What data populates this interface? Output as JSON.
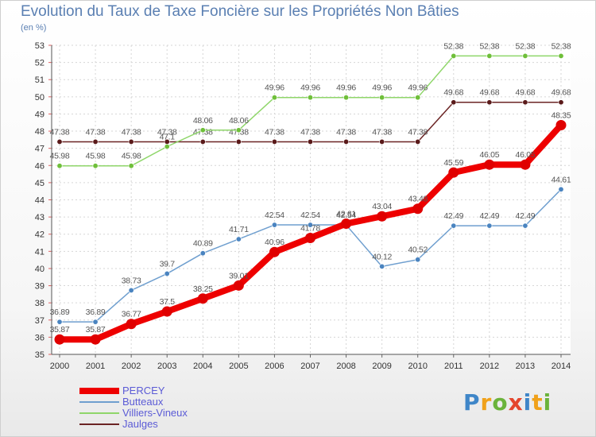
{
  "header": {
    "title": "Evolution du Taux de Taxe Foncière sur les Propriétés Non Bâties",
    "subtitle": "(en %)"
  },
  "logo": {
    "text": "Proxiti"
  },
  "chart_data": {
    "type": "line",
    "x": [
      "2000",
      "2001",
      "2002",
      "2003",
      "2004",
      "2005",
      "2006",
      "2007",
      "2008",
      "2009",
      "2010",
      "2011",
      "2012",
      "2013",
      "2014"
    ],
    "ylim": [
      35,
      53
    ],
    "yticks": [
      35,
      36,
      37,
      38,
      39,
      40,
      41,
      42,
      43,
      44,
      45,
      46,
      47,
      48,
      49,
      50,
      51,
      52,
      53
    ],
    "grid": true,
    "legend_position": "bottom-left",
    "series": [
      {
        "name": "Jaulges",
        "color": "#6b2424",
        "marker": "#5a1a1a",
        "width": 1.5,
        "values": [
          47.38,
          47.38,
          47.38,
          47.38,
          47.38,
          47.38,
          47.38,
          47.38,
          47.38,
          47.38,
          47.38,
          49.68,
          49.68,
          49.68,
          49.68
        ],
        "labels": [
          "47.38",
          "47.38",
          "47.38",
          "47.38",
          "47.38",
          "47.38",
          "47.38",
          "47.38",
          "47.38",
          "47.38",
          "47.38",
          "49.68",
          "49.68",
          "49.68",
          "49.68"
        ]
      },
      {
        "name": "Villiers-Vineux",
        "color": "#8fd66a",
        "marker": "#6fbf3a",
        "width": 1.5,
        "values": [
          45.98,
          45.98,
          45.98,
          47.1,
          48.06,
          48.06,
          49.96,
          49.96,
          49.96,
          49.96,
          49.96,
          52.38,
          52.38,
          52.38,
          52.38
        ],
        "labels": [
          "45.98",
          "45.98",
          "45.98",
          "47.1",
          "48.06",
          "48.06",
          "49.96",
          "49.96",
          "49.96",
          "49.96",
          "49.96",
          "52.38",
          "52.38",
          "52.38",
          "52.38"
        ]
      },
      {
        "name": "Butteaux",
        "color": "#6f9fcf",
        "marker": "#4a84c0",
        "width": 1.5,
        "values": [
          36.89,
          36.89,
          38.73,
          39.7,
          40.89,
          41.71,
          42.54,
          42.54,
          42.54,
          40.12,
          40.52,
          42.49,
          42.49,
          42.49,
          44.61
        ],
        "labels": [
          "36.89",
          "36.89",
          "38.73",
          "39.7",
          "40.89",
          "41.71",
          "42.54",
          "42.54",
          "42.54",
          "40.12",
          "40.52",
          "42.49",
          "42.49",
          "42.49",
          "44.61"
        ]
      },
      {
        "name": "PERCEY",
        "color": "#ee0000",
        "marker": "#e00000",
        "width": 8,
        "values": [
          35.87,
          35.87,
          36.77,
          37.5,
          38.25,
          39.01,
          40.96,
          41.78,
          42.61,
          43.04,
          43.48,
          45.59,
          46.05,
          46.05,
          48.35
        ],
        "labels": [
          "35.87",
          "35.87",
          "36.77",
          "37.5",
          "38.25",
          "39.01",
          "40.96",
          "41.78",
          "42.61",
          "43.04",
          "43.48",
          "45.59",
          "46.05",
          "46.05",
          "48.35"
        ]
      }
    ]
  }
}
